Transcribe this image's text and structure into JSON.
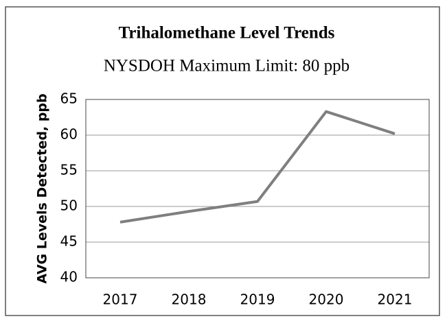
{
  "chart_data": {
    "type": "line",
    "title": "Trihalomethane Level Trends",
    "subtitle": "NYSDOH Maximum Limit: 80 ppb",
    "y_label": "AVG Levels Detected, ppb",
    "categories": [
      "2017",
      "2018",
      "2019",
      "2020",
      "2021"
    ],
    "series": [
      {
        "name": "Trihalomethane",
        "color": "#7f7f7f",
        "values": [
          47.8,
          49.3,
          50.7,
          63.3,
          60.2
        ]
      }
    ],
    "ylim": [
      40,
      65
    ],
    "yticks": [
      40,
      45,
      50,
      55,
      60,
      65
    ],
    "grid": true
  }
}
